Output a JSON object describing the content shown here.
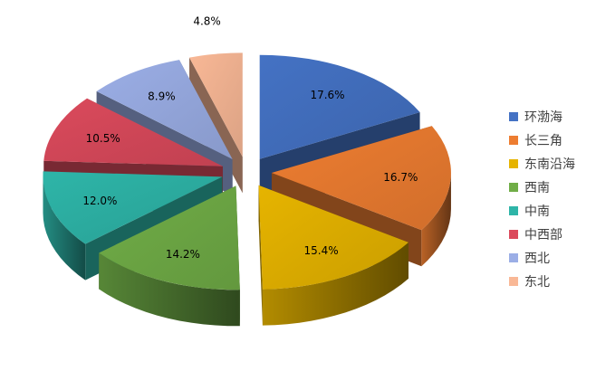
{
  "chart_data": {
    "type": "pie",
    "title": "",
    "legend_position": "right",
    "slices": [
      {
        "name": "环渤海",
        "value": 17.6,
        "label": "17.6%",
        "color": "#4472C4"
      },
      {
        "name": "长三角",
        "value": 16.7,
        "label": "16.7%",
        "color": "#ED7D31"
      },
      {
        "name": "东南沿海",
        "value": 15.4,
        "label": "15.4%",
        "color": "#E6B400"
      },
      {
        "name": "西南",
        "value": 14.2,
        "label": "14.2%",
        "color": "#70AD47"
      },
      {
        "name": "中南",
        "value": 12.0,
        "label": "12.0%",
        "color": "#2EB5A8"
      },
      {
        "name": "中西部",
        "value": 10.5,
        "label": "10.5%",
        "color": "#DB4A5C"
      },
      {
        "name": "西北",
        "value": 8.9,
        "label": "8.9%",
        "color": "#9BAEE6"
      },
      {
        "name": "东北",
        "value": 4.8,
        "label": "4.8%",
        "color": "#F9B896"
      }
    ]
  }
}
